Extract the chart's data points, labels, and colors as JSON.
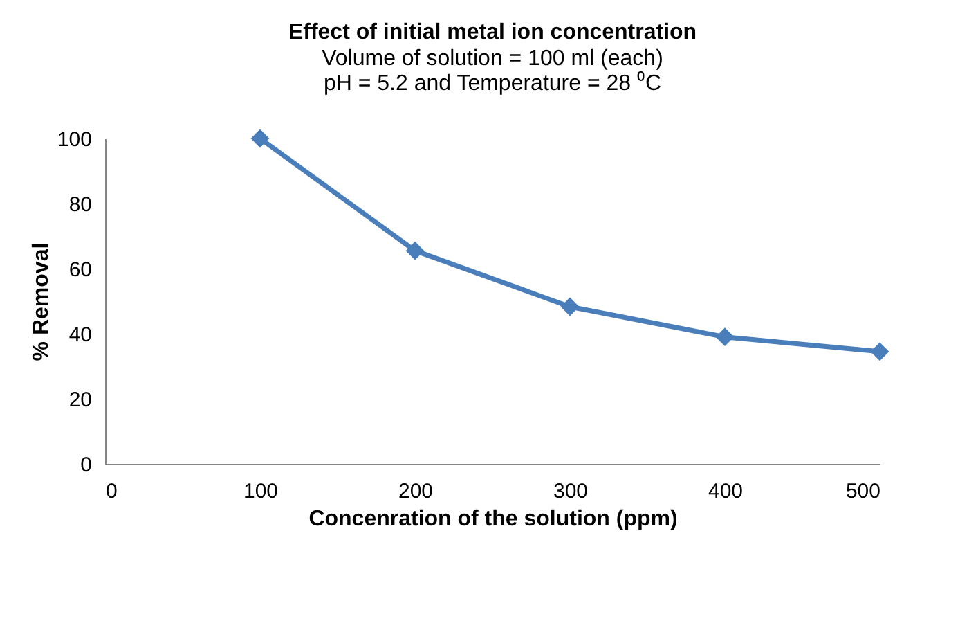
{
  "chart_data": {
    "type": "line",
    "title": "Effect of initial metal ion concentration",
    "subtitle": "Volume of solution = 100 ml (each)\npH = 5.2  and Temperature = 28 ⁰C",
    "xlabel": "Concenration of the solution (ppm)",
    "ylabel": "% Removal",
    "x": [
      100,
      200,
      300,
      400,
      500
    ],
    "series": [
      {
        "color": "#4a7ebb",
        "values": [
          100,
          65.5,
          48.3,
          39,
          34.5
        ]
      }
    ],
    "xlim": [
      0,
      500
    ],
    "xticks": [
      0,
      100,
      200,
      300,
      400,
      500
    ],
    "ylim": [
      0,
      100
    ],
    "yticks": [
      0,
      20,
      40,
      60,
      80,
      100
    ],
    "grid": false,
    "marker": "diamond",
    "line_style": "solid"
  }
}
